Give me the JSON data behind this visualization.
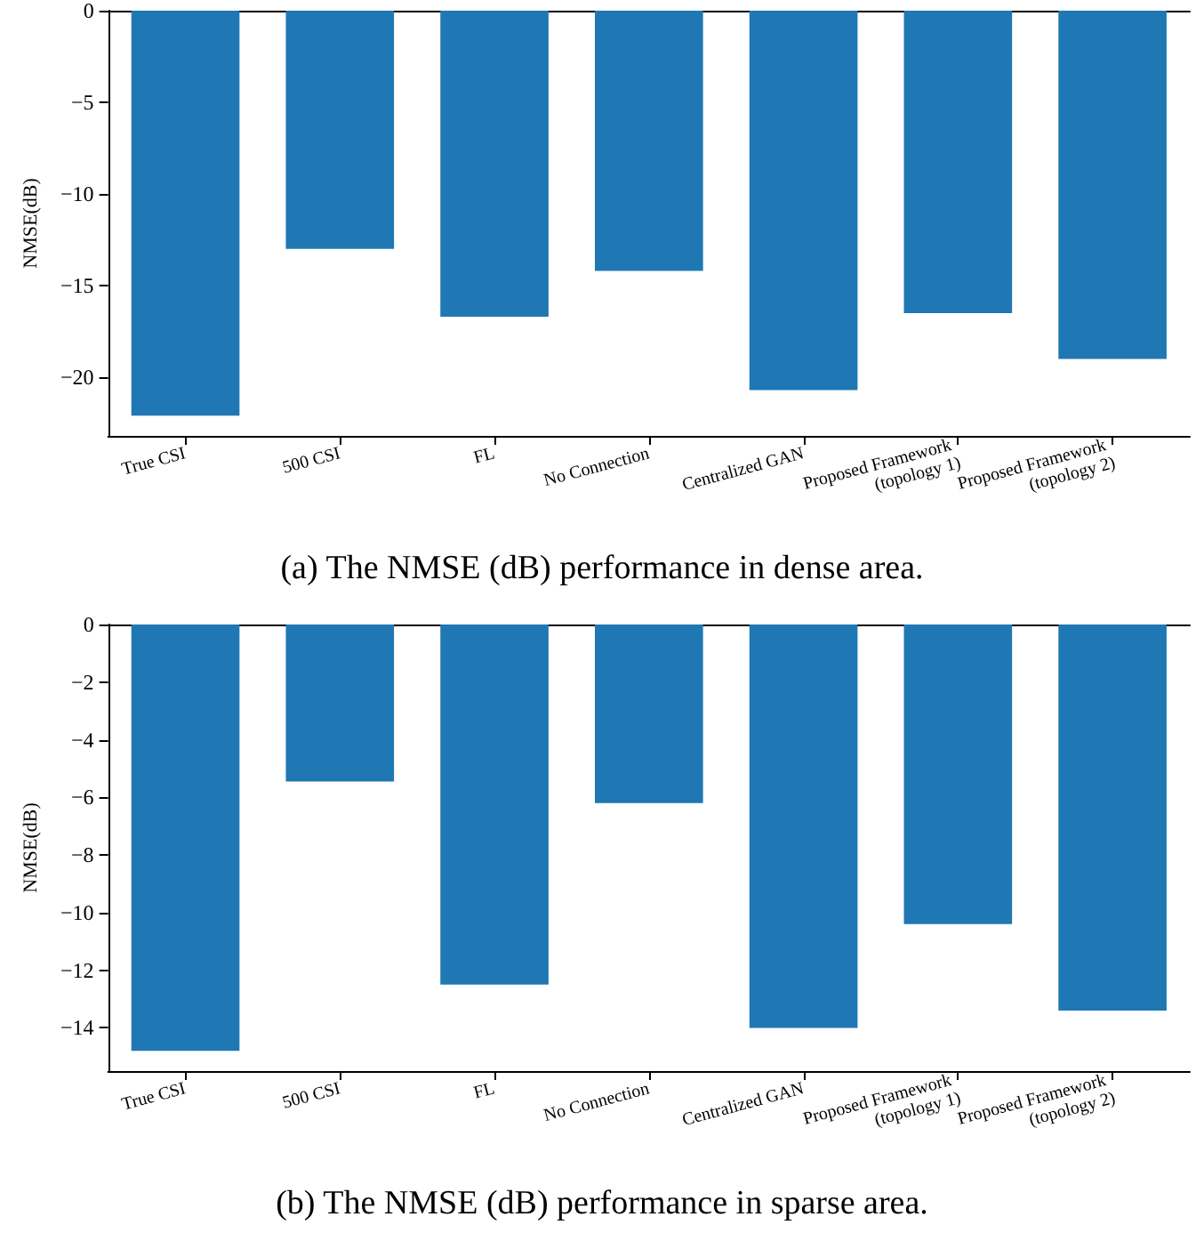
{
  "chart_data": [
    {
      "type": "bar",
      "title": "(a) The NMSE (dB) performance in dense area.",
      "ylabel": "NMSE(dB)",
      "categories": [
        "True CSI",
        "500 CSI",
        "FL",
        "No Connection",
        "Centralized GAN",
        "Proposed Framework (topology 1)",
        "Proposed Framework (topology 2)"
      ],
      "values": [
        -22.1,
        -13.0,
        -16.7,
        -14.2,
        -20.7,
        -16.5,
        -19.0
      ],
      "color": "#1f77b4",
      "ylim": [
        -23.2,
        0
      ],
      "yticks": [
        -20,
        -15,
        -10,
        -5,
        0
      ],
      "grid": false
    },
    {
      "type": "bar",
      "title": "(b) The NMSE (dB) performance in sparse area.",
      "ylabel": "NMSE(dB)",
      "categories": [
        "True CSI",
        "500 CSI",
        "FL",
        "No Connection",
        "Centralized GAN",
        "Proposed Framework (topology 1)",
        "Proposed Framework (topology 2)"
      ],
      "values": [
        -14.8,
        -5.45,
        -12.5,
        -6.2,
        -14.0,
        -10.4,
        -13.4
      ],
      "color": "#1f77b4",
      "ylim": [
        -15.5,
        0
      ],
      "yticks": [
        -14,
        -12,
        -10,
        -8,
        -6,
        -4,
        -2,
        0
      ],
      "grid": false
    }
  ]
}
